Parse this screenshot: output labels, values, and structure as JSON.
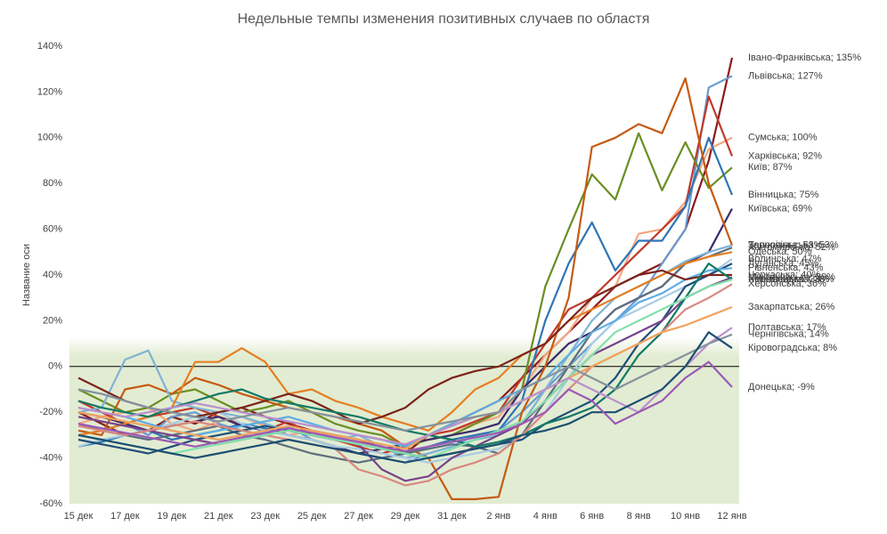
{
  "chart_data": {
    "type": "line",
    "title": "Недельные темпы изменения позитивных случаев по областя",
    "y_label": "Название оси",
    "categories": [
      "15 дек",
      null,
      "17 дек",
      null,
      "19 дек",
      null,
      "21 дек",
      null,
      "23 дек",
      null,
      "25 дек",
      null,
      "27 дек",
      null,
      "29 дек",
      null,
      "31 дек",
      null,
      "2 янв",
      null,
      "4 янв",
      null,
      "6 янв",
      null,
      "8 янв",
      null,
      "10 янв",
      null,
      "12 янв"
    ],
    "ylim": [
      -60,
      140
    ],
    "yticks": [
      {
        "value": -60,
        "label": "-60%"
      },
      {
        "value": -40,
        "label": "-40%"
      },
      {
        "value": -20,
        "label": "-20%"
      },
      {
        "value": 0,
        "label": "0%"
      },
      {
        "value": 20,
        "label": "20%"
      },
      {
        "value": 40,
        "label": "40%"
      },
      {
        "value": 60,
        "label": "60%"
      },
      {
        "value": 80,
        "label": "80%"
      },
      {
        "value": 100,
        "label": "100%"
      },
      {
        "value": 120,
        "label": "120%"
      },
      {
        "value": 140,
        "label": "140%"
      }
    ],
    "grid": false,
    "series": [
      {
        "name": "Івано-Франківська",
        "end_label": "Івано-Франківська; 135%",
        "color": "#8b1a1a",
        "values": [
          -20,
          -25,
          -30,
          -28,
          -22,
          -25,
          -20,
          -18,
          -22,
          -25,
          -28,
          -30,
          -32,
          -35,
          -38,
          -30,
          -25,
          -20,
          -15,
          -5,
          5,
          15,
          25,
          35,
          40,
          45,
          60,
          90,
          135
        ]
      },
      {
        "name": "Львівська",
        "end_label": "Львівська; 127%",
        "color": "#6a9bd1",
        "values": [
          -30,
          -28,
          -25,
          -30,
          -22,
          -20,
          -25,
          -28,
          -30,
          -26,
          -32,
          -35,
          -38,
          -40,
          -42,
          -38,
          -35,
          -30,
          -28,
          -20,
          -10,
          0,
          10,
          20,
          30,
          45,
          60,
          122,
          127
        ]
      },
      {
        "name": "Сумська",
        "end_label": "Сумська; 100%",
        "color": "#f4a582",
        "values": [
          -25,
          -22,
          -20,
          -18,
          -25,
          -28,
          -24,
          -22,
          -26,
          -30,
          -28,
          -32,
          -35,
          -38,
          -36,
          -30,
          -28,
          -25,
          -22,
          -10,
          5,
          15,
          30,
          35,
          58,
          60,
          72,
          95,
          100
        ]
      },
      {
        "name": "Харківська",
        "end_label": "Харківська; 92%",
        "color": "#c0392b",
        "values": [
          -15,
          -20,
          -25,
          -22,
          -20,
          -18,
          -22,
          -25,
          -28,
          -24,
          -30,
          -32,
          -35,
          -38,
          -35,
          -30,
          -28,
          -24,
          -20,
          -5,
          10,
          25,
          30,
          40,
          50,
          60,
          70,
          118,
          92
        ]
      },
      {
        "name": "Київ",
        "end_label": "Київ; 87%",
        "color": "#6b8e23",
        "values": [
          -10,
          -15,
          -20,
          -18,
          -12,
          -10,
          -15,
          -20,
          -18,
          -15,
          -20,
          -25,
          -28,
          -30,
          -35,
          -32,
          -30,
          -25,
          -20,
          -10,
          35,
          60,
          84,
          73,
          102,
          77,
          98,
          78,
          87
        ]
      },
      {
        "name": "Вінницька",
        "end_label": "Вінницька; 75%",
        "color": "#2e75b6",
        "values": [
          -35,
          -33,
          -30,
          -28,
          -32,
          -30,
          -28,
          -25,
          -27,
          -30,
          -32,
          -35,
          -38,
          -40,
          -38,
          -35,
          -32,
          -30,
          -28,
          -15,
          20,
          45,
          63,
          42,
          55,
          55,
          70,
          100,
          75
        ]
      },
      {
        "name": "Київська",
        "end_label": "Київська; 69%",
        "color": "#3b2a6b",
        "values": [
          -20,
          -22,
          -25,
          -28,
          -26,
          -24,
          -22,
          -26,
          -28,
          -30,
          -32,
          -35,
          -38,
          -36,
          -34,
          -32,
          -30,
          -28,
          -25,
          -10,
          0,
          10,
          15,
          25,
          30,
          35,
          45,
          50,
          69
        ]
      },
      {
        "name": "Запорізька",
        "end_label": "Запорізька; 53%",
        "color": "#c55a11",
        "values": [
          -28,
          -30,
          -10,
          -8,
          -12,
          -5,
          -8,
          -12,
          -15,
          -18,
          -20,
          -22,
          -25,
          -28,
          -35,
          -40,
          -58,
          -58,
          -57,
          -20,
          0,
          30,
          96,
          100,
          106,
          102,
          126,
          80,
          53
        ]
      },
      {
        "name": "Тернопільська",
        "end_label": "Тернопільська; 53%",
        "color": "#7fb3d5",
        "values": [
          -20,
          -18,
          3,
          7,
          -15,
          -18,
          -20,
          -22,
          -25,
          -28,
          -30,
          -32,
          -30,
          -35,
          -40,
          -38,
          -35,
          -32,
          -30,
          -25,
          -10,
          5,
          20,
          30,
          35,
          40,
          46,
          50,
          53
        ]
      },
      {
        "name": "Житомирська",
        "end_label": "Житомирська; 52%",
        "color": "#5d6d7e",
        "values": [
          -25,
          -28,
          -30,
          -32,
          -30,
          -28,
          -26,
          -30,
          -32,
          -35,
          -38,
          -40,
          -42,
          -40,
          -38,
          -36,
          -34,
          -35,
          -38,
          -30,
          -15,
          0,
          15,
          25,
          30,
          35,
          45,
          48,
          52
        ]
      },
      {
        "name": "Одеська",
        "end_label": "Одеська; 50%",
        "color": "#e67e22",
        "values": [
          -30,
          -28,
          -25,
          -22,
          -18,
          2,
          2,
          8,
          2,
          -12,
          -10,
          -15,
          -18,
          -22,
          -25,
          -28,
          -20,
          -10,
          -5,
          5,
          10,
          20,
          25,
          30,
          35,
          40,
          45,
          48,
          50
        ]
      },
      {
        "name": "Волинська",
        "end_label": "Волинська; 47%",
        "color": "#a9cce3",
        "values": [
          -35,
          -32,
          -30,
          -28,
          -25,
          -22,
          -20,
          -25,
          -28,
          -30,
          -32,
          -35,
          -36,
          -38,
          -40,
          -42,
          -40,
          -38,
          -36,
          -30,
          -20,
          -5,
          10,
          20,
          25,
          30,
          35,
          40,
          47
        ]
      },
      {
        "name": "Луганська",
        "end_label": "Луганська; 45%",
        "color": "#1f4e79",
        "values": [
          -32,
          -34,
          -36,
          -38,
          -35,
          -32,
          -30,
          -28,
          -26,
          -28,
          -30,
          -32,
          -34,
          -36,
          -38,
          -40,
          -38,
          -36,
          -34,
          -32,
          -25,
          -20,
          -15,
          -5,
          10,
          20,
          35,
          40,
          45
        ]
      },
      {
        "name": "Рівненська",
        "end_label": "Рівненська; 43%",
        "color": "#5dade2",
        "values": [
          -18,
          -20,
          -22,
          -25,
          -28,
          -30,
          -28,
          -26,
          -24,
          -22,
          -25,
          -28,
          -30,
          -32,
          -35,
          -30,
          -25,
          -20,
          -15,
          -10,
          -5,
          5,
          15,
          20,
          28,
          32,
          38,
          42,
          43
        ]
      },
      {
        "name": "Черкаська",
        "end_label": "Черкаська; 40%",
        "color": "#7b241c",
        "values": [
          -5,
          -10,
          -15,
          -18,
          -20,
          -22,
          -20,
          -18,
          -15,
          -12,
          -15,
          -20,
          -25,
          -22,
          -18,
          -10,
          -5,
          -2,
          0,
          5,
          10,
          20,
          30,
          35,
          40,
          42,
          38,
          40,
          40
        ]
      },
      {
        "name": "Миколаївська",
        "end_label": "Миколаївська; 39%",
        "color": "#76448a",
        "values": [
          -22,
          -24,
          -26,
          -28,
          -30,
          -32,
          -34,
          -32,
          -30,
          -28,
          -30,
          -32,
          -34,
          -45,
          -50,
          -48,
          -40,
          -35,
          -30,
          -25,
          -15,
          -5,
          5,
          10,
          15,
          20,
          30,
          35,
          39
        ]
      },
      {
        "name": "Хмельницька",
        "end_label": "Хмельницька; 38%",
        "color": "#117a65",
        "values": [
          -15,
          -18,
          -20,
          -22,
          -18,
          -15,
          -12,
          -10,
          -14,
          -16,
          -18,
          -20,
          -22,
          -25,
          -28,
          -30,
          -32,
          -35,
          -33,
          -30,
          -25,
          -22,
          -18,
          -10,
          5,
          15,
          30,
          45,
          38
        ]
      },
      {
        "name": "Херсонська",
        "end_label": "Херсонська; 36%",
        "color": "#d98880",
        "values": [
          -26,
          -28,
          -30,
          -28,
          -26,
          -24,
          -26,
          -28,
          -30,
          -32,
          -34,
          -36,
          -45,
          -48,
          -52,
          -50,
          -45,
          -42,
          -38,
          -30,
          -20,
          -10,
          0,
          5,
          10,
          15,
          25,
          30,
          36
        ]
      },
      {
        "name": "Чернівецька",
        "end_label": "Чернівецька; 38%",
        "color": "#82e0aa",
        "values": [
          -30,
          -32,
          -34,
          -36,
          -38,
          -36,
          -34,
          -32,
          -30,
          -28,
          -30,
          -32,
          -34,
          -36,
          -38,
          -40,
          -36,
          -32,
          -28,
          -24,
          -15,
          -5,
          5,
          15,
          20,
          25,
          30,
          35,
          38
        ]
      },
      {
        "name": "Закарпатська",
        "end_label": "Закарпатська; 26%",
        "color": "#f0a35e",
        "values": [
          -20,
          -22,
          -24,
          -26,
          -28,
          -30,
          -32,
          -30,
          -28,
          -26,
          -28,
          -30,
          -32,
          -34,
          -36,
          -30,
          -26,
          -22,
          -20,
          -15,
          -10,
          -5,
          0,
          5,
          10,
          15,
          18,
          22,
          26
        ]
      },
      {
        "name": "Полтавська",
        "end_label": "Полтавська; 17%",
        "color": "#bb8fce",
        "values": [
          -18,
          -20,
          -22,
          -20,
          -18,
          -16,
          -18,
          -20,
          -22,
          -24,
          -26,
          -28,
          -30,
          -32,
          -34,
          -30,
          -26,
          -22,
          -20,
          -15,
          -10,
          -5,
          -10,
          -15,
          -20,
          -10,
          0,
          10,
          17
        ]
      },
      {
        "name": "Чернігівська",
        "end_label": "Чернігівська; 14%",
        "color": "#85929e",
        "values": [
          -10,
          -12,
          -15,
          -18,
          -20,
          -22,
          -24,
          -22,
          -20,
          -18,
          -20,
          -22,
          -24,
          -26,
          -28,
          -26,
          -24,
          -22,
          -20,
          -10,
          -5,
          0,
          -5,
          -10,
          -5,
          0,
          5,
          10,
          14
        ]
      },
      {
        "name": "Кіровоградська",
        "end_label": "Кіровоградська; 8%",
        "color": "#1b4f72",
        "values": [
          -30,
          -32,
          -34,
          -36,
          -38,
          -40,
          -38,
          -36,
          -34,
          -32,
          -34,
          -36,
          -38,
          -40,
          -42,
          -40,
          -38,
          -36,
          -34,
          -30,
          -28,
          -25,
          -20,
          -20,
          -15,
          -10,
          0,
          15,
          8
        ]
      },
      {
        "name": "Донецька",
        "end_label": "Донецька; -9%",
        "color": "#9b59b6",
        "values": [
          -25,
          -27,
          -29,
          -31,
          -33,
          -35,
          -33,
          -31,
          -29,
          -27,
          -29,
          -31,
          -33,
          -35,
          -37,
          -35,
          -33,
          -31,
          -29,
          -25,
          -20,
          -10,
          -15,
          -25,
          -20,
          -15,
          -5,
          2,
          -9
        ]
      }
    ]
  }
}
